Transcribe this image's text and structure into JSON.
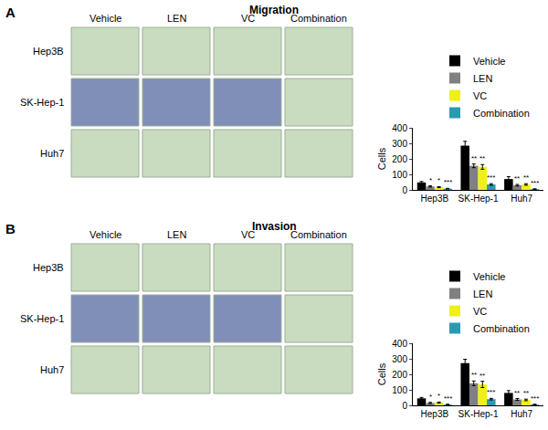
{
  "figure": {
    "panels": [
      {
        "letter": "A",
        "title": "Migration",
        "columns": [
          "Vehicle",
          "LEN",
          "VC",
          "Combination"
        ],
        "rows": [
          "Hep3B",
          "SK-Hep-1",
          "Huh7"
        ]
      },
      {
        "letter": "B",
        "title": "Invasion",
        "columns": [
          "Vehicle",
          "LEN",
          "VC",
          "Combination"
        ],
        "rows": [
          "Hep3B",
          "SK-Hep-1",
          "Huh7"
        ]
      }
    ]
  },
  "chart_data": [
    {
      "type": "bar",
      "y_label": "Cells",
      "categories": [
        "Hep3B",
        "SK-Hep-1",
        "Huh7"
      ],
      "ylim": [
        0,
        400
      ],
      "yticks": [
        0,
        100,
        200,
        300,
        400
      ],
      "grid": false,
      "legend": "upper right",
      "series": [
        {
          "name": "Vehicle",
          "color": "#000000",
          "values": [
            48,
            285,
            70
          ],
          "error": [
            6,
            28,
            15
          ]
        },
        {
          "name": "LEN",
          "color": "#808080",
          "values": [
            22,
            155,
            30
          ],
          "error": [
            4,
            12,
            5
          ],
          "significance": [
            "*",
            "**",
            "**"
          ]
        },
        {
          "name": "VC",
          "color": "#f0f014",
          "values": [
            18,
            148,
            35
          ],
          "error": [
            3,
            15,
            5
          ],
          "significance": [
            "*",
            "**",
            "**"
          ]
        },
        {
          "name": "Combination",
          "color": "#2b9ab0",
          "values": [
            8,
            35,
            5
          ],
          "error": [
            2,
            5,
            2
          ],
          "significance": [
            "***",
            "***",
            "***"
          ]
        }
      ]
    },
    {
      "type": "bar",
      "y_label": "Cells",
      "categories": [
        "Hep3B",
        "SK-Hep-1",
        "Huh7"
      ],
      "ylim": [
        0,
        400
      ],
      "yticks": [
        0,
        100,
        200,
        300,
        400
      ],
      "grid": false,
      "legend": "upper right",
      "series": [
        {
          "name": "Vehicle",
          "color": "#000000",
          "values": [
            45,
            272,
            80
          ],
          "error": [
            6,
            25,
            15
          ]
        },
        {
          "name": "LEN",
          "color": "#808080",
          "values": [
            15,
            142,
            38
          ],
          "error": [
            4,
            15,
            6
          ],
          "significance": [
            "*",
            "**",
            "**"
          ]
        },
        {
          "name": "VC",
          "color": "#f0f014",
          "values": [
            18,
            135,
            35
          ],
          "error": [
            3,
            20,
            5
          ],
          "significance": [
            "*",
            "**",
            "**"
          ]
        },
        {
          "name": "Combination",
          "color": "#2b9ab0",
          "values": [
            5,
            40,
            5
          ],
          "error": [
            2,
            5,
            2
          ],
          "significance": [
            "***",
            "***",
            "***"
          ]
        }
      ]
    }
  ]
}
